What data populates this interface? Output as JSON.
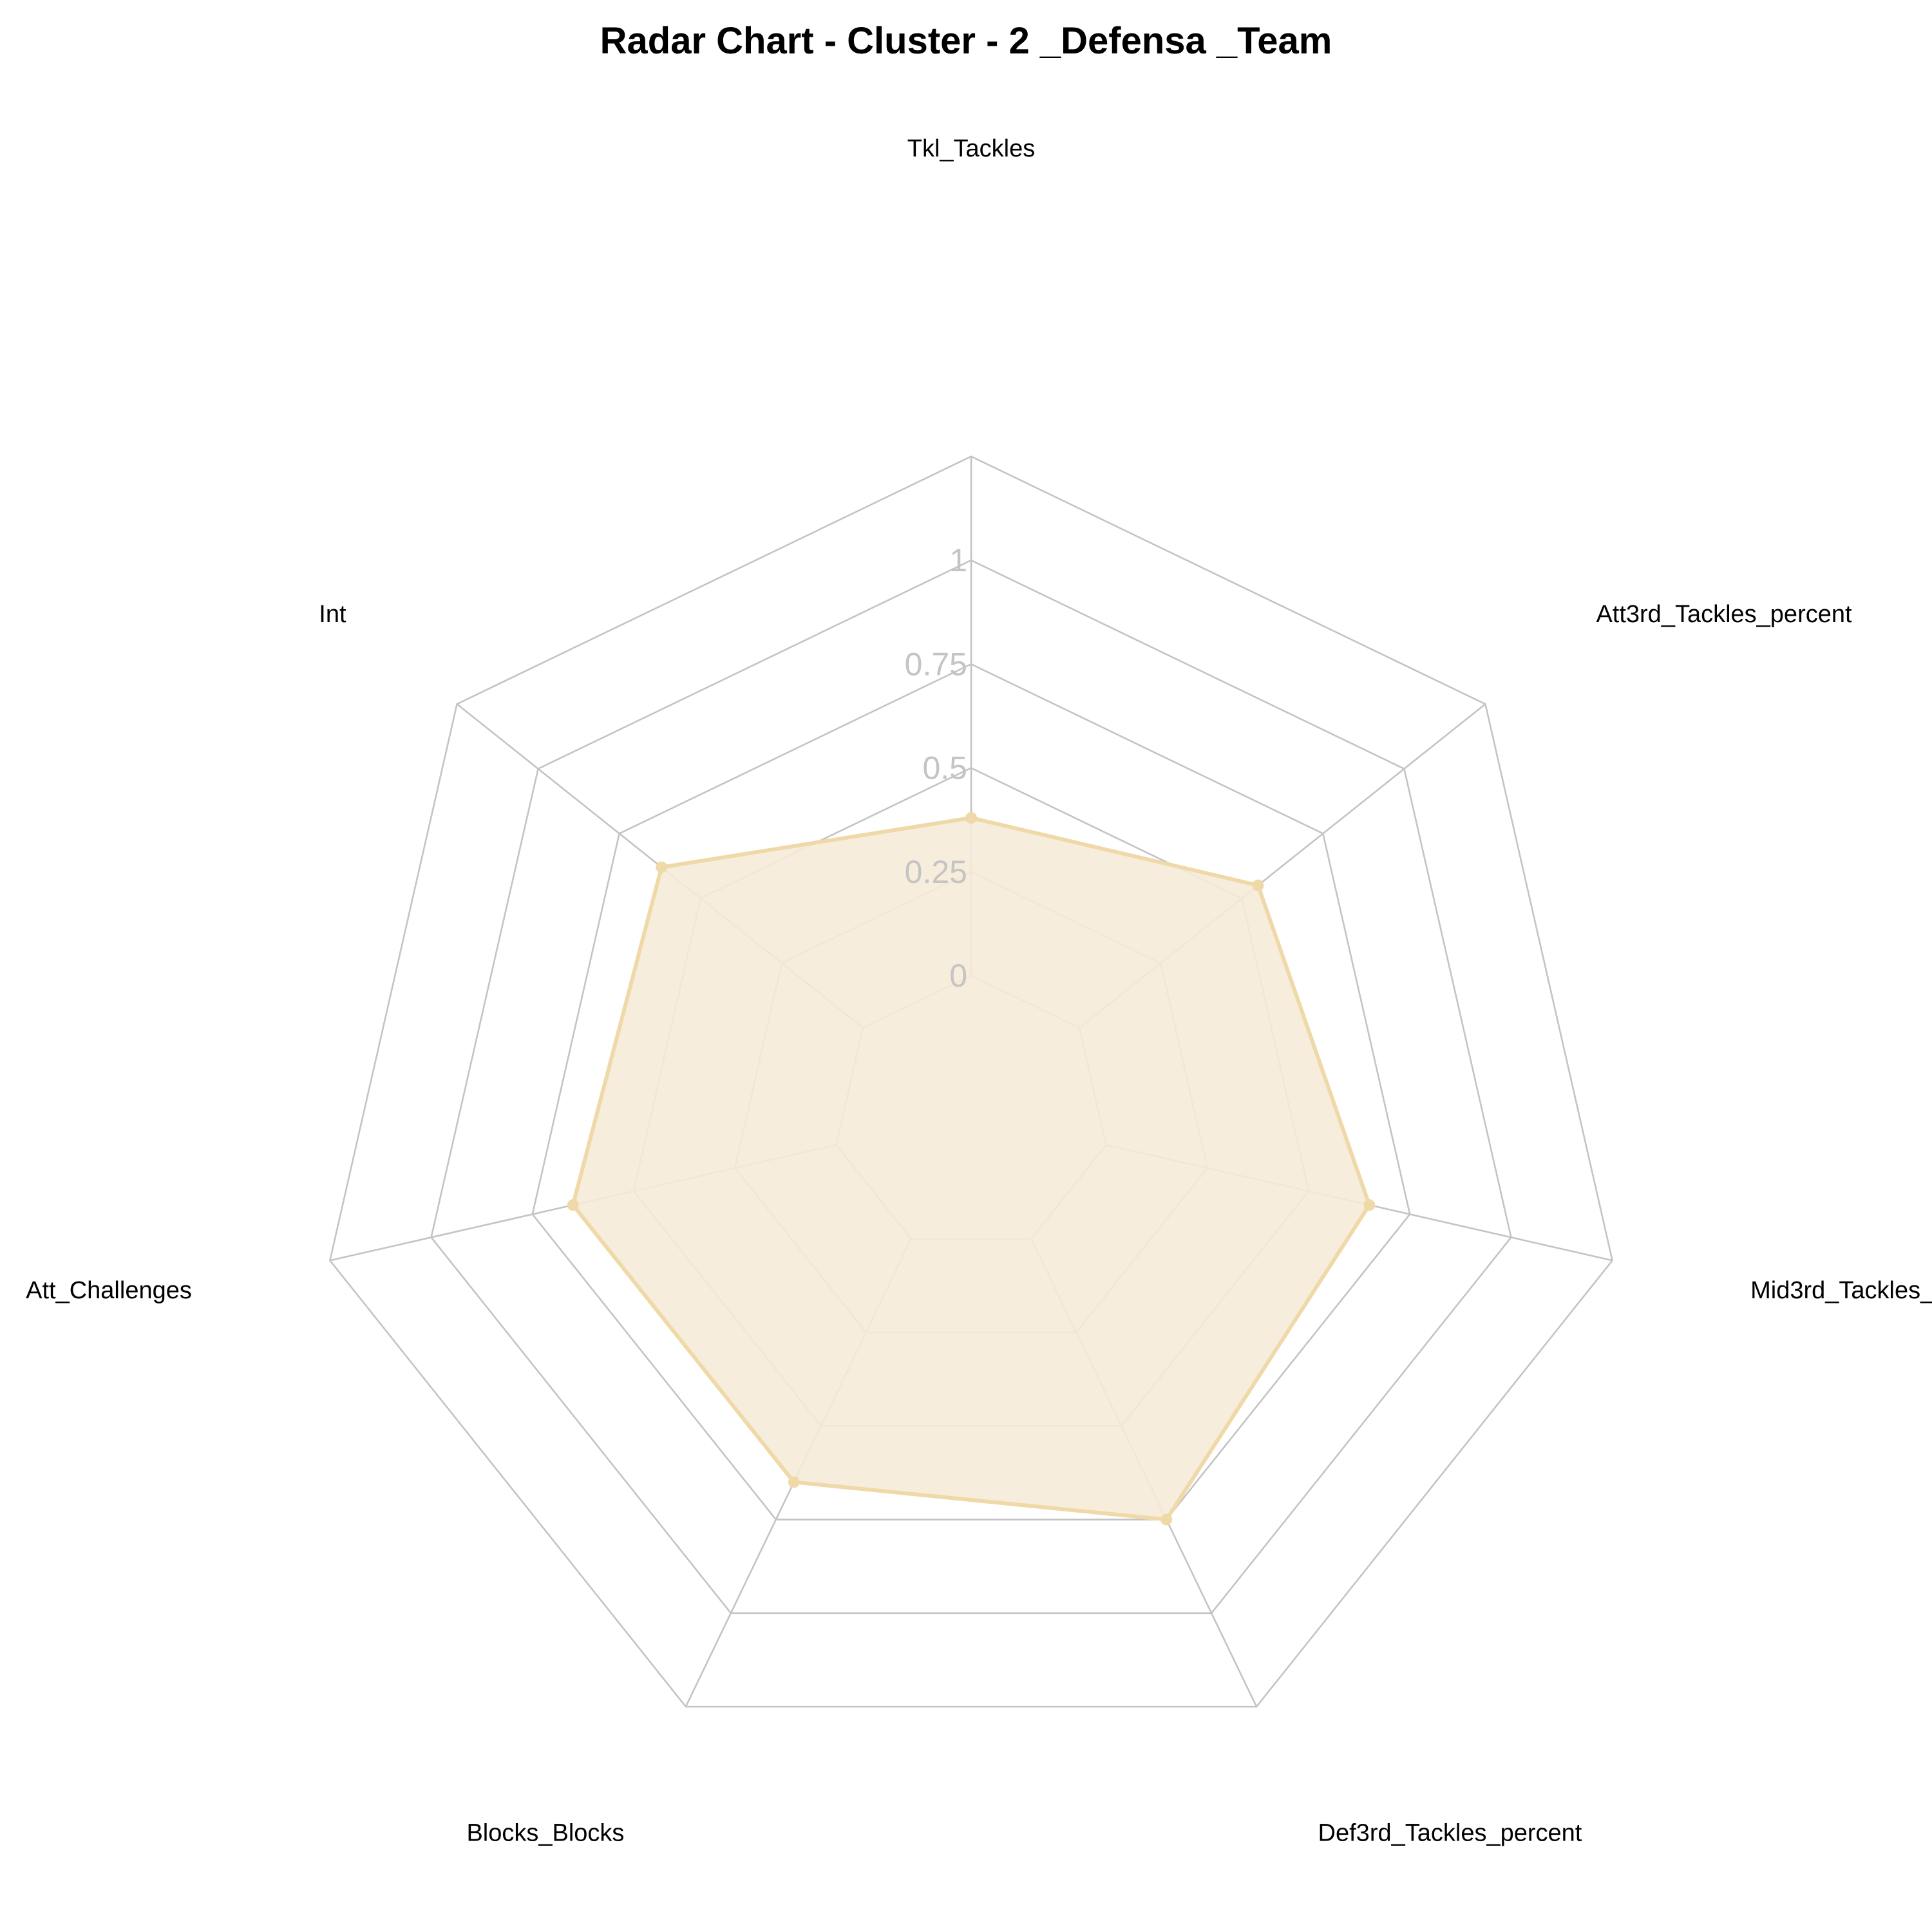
{
  "chart_data": {
    "type": "radar",
    "title": "Radar Chart - Cluster - 2 _Defensa _Team",
    "axes": [
      "Tkl_Tackles",
      "Att3rd_Tackles_percent",
      "Mid3rd_Tackles_percent",
      "Def3rd_Tackles_percent",
      "Blocks_Blocks",
      "Att_Challenges",
      "Int"
    ],
    "ticks": [
      "0",
      "0.25",
      "0.5",
      "0.75",
      "1"
    ],
    "rlim": [
      0,
      1
    ],
    "grid": true,
    "series": [
      {
        "values": [
          0.38,
          0.55,
          0.65,
          0.75,
          0.65,
          0.65,
          0.62
        ]
      }
    ],
    "colors": {
      "series_line": "#f0d9a8",
      "series_fill": "#f5ebd8",
      "grid": "#c4c4c4"
    }
  }
}
